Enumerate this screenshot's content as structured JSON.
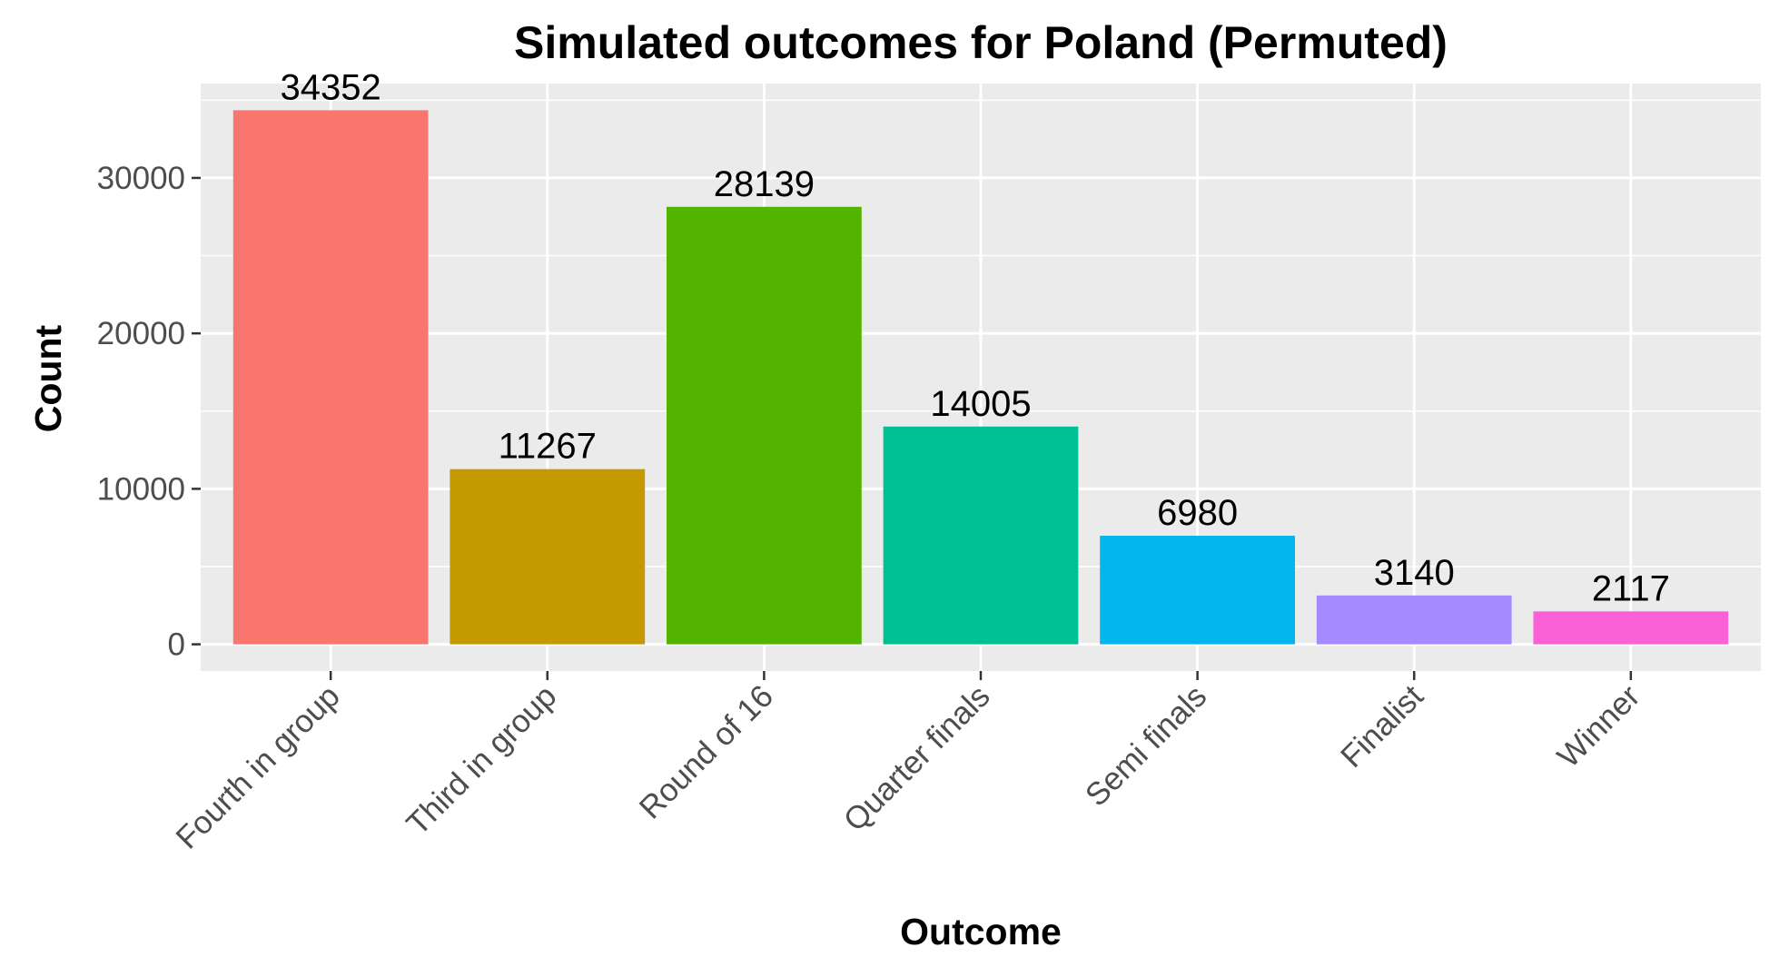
{
  "chart_data": {
    "type": "bar",
    "title": "Simulated outcomes for Poland (Permuted)",
    "xlabel": "Outcome",
    "ylabel": "Count",
    "categories": [
      "Fourth in group",
      "Third in group",
      "Round of 16",
      "Quarter finals",
      "Semi finals",
      "Finalist",
      "Winner"
    ],
    "values": [
      34352,
      11267,
      28139,
      14005,
      6980,
      3140,
      2117
    ],
    "data_labels": [
      "34352",
      "11267",
      "28139",
      "14005",
      "6980",
      "3140",
      "2117"
    ],
    "colors": [
      "#F8766D",
      "#C49A00",
      "#53B400",
      "#00C094",
      "#00B6EB",
      "#A58AFF",
      "#FB61D7"
    ],
    "yticks": [
      0,
      10000,
      20000,
      30000
    ],
    "ytick_labels": [
      "0",
      "10000",
      "20000",
      "30000"
    ],
    "ylim": [
      -1718,
      36070
    ],
    "grid": true,
    "legend": "none",
    "panel_background": "#EBEBEB",
    "grid_color": "#FFFFFF",
    "tick_label_color": "#4D4D4D"
  }
}
